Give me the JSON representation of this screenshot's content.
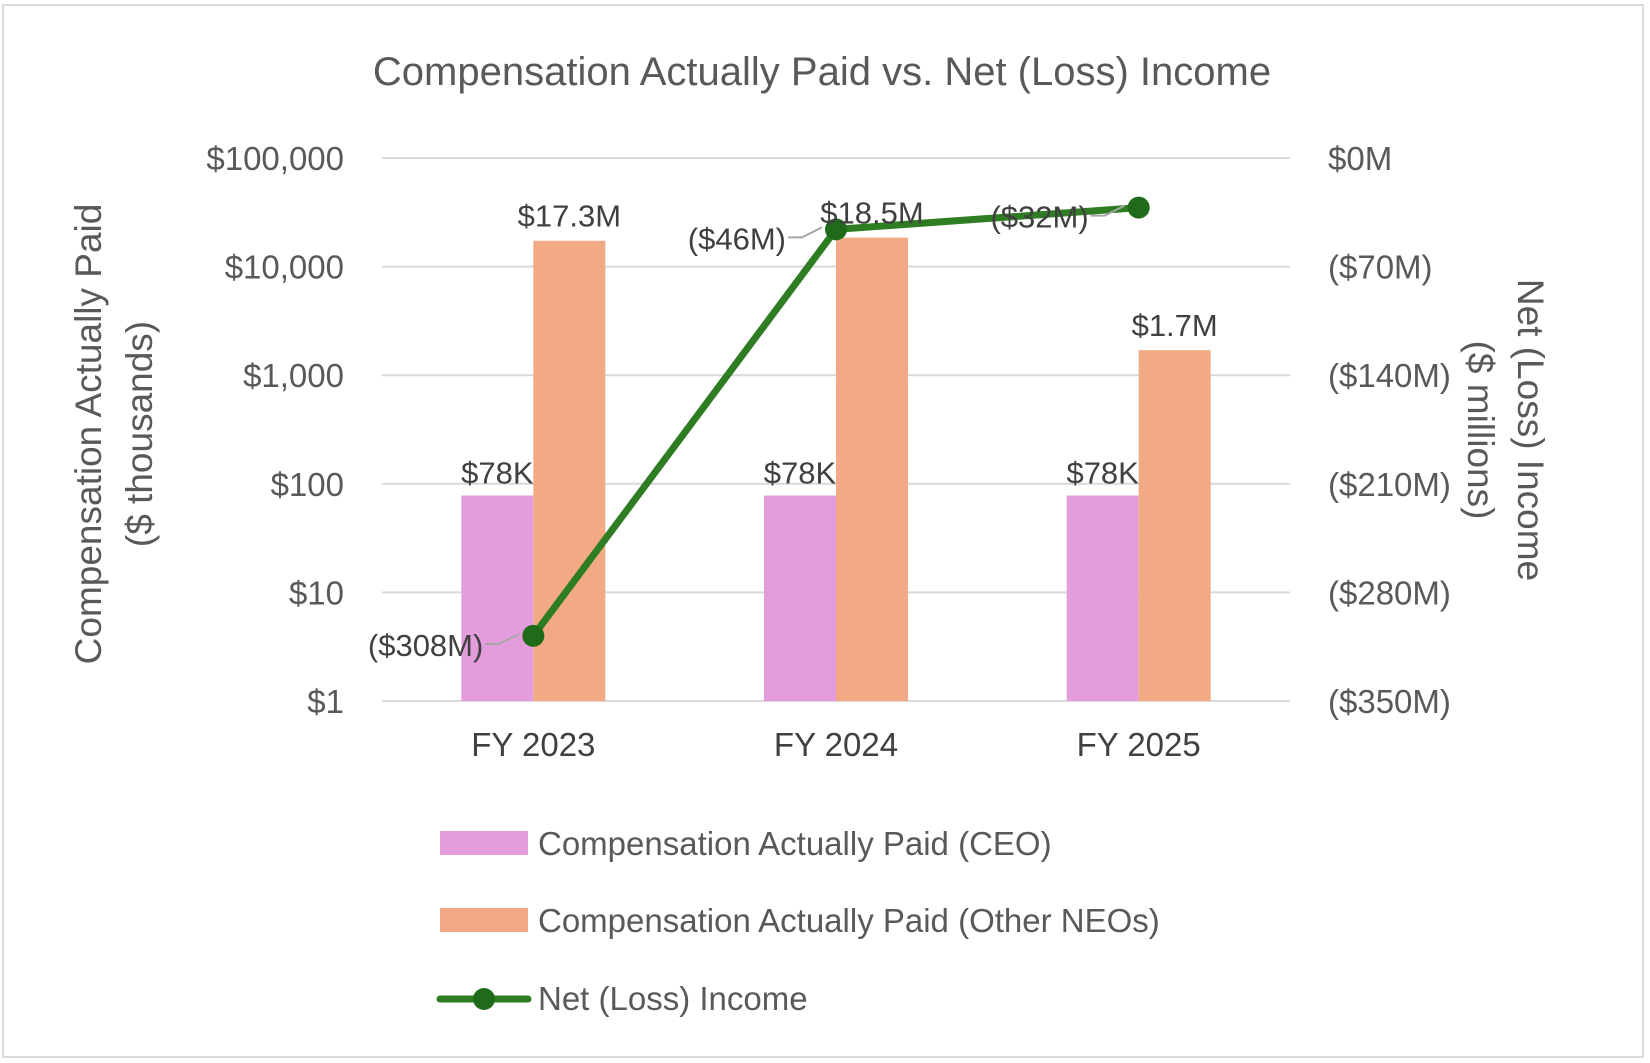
{
  "chart_data": {
    "type": "bar",
    "title": "Compensation Actually Paid vs. Net (Loss) Income",
    "categories": [
      "FY 2023",
      "FY 2024",
      "FY 2025"
    ],
    "y_left": {
      "label_line1": "Compensation Actually Paid",
      "label_line2": "($ thousands)",
      "scale": "log",
      "ylim": [
        1,
        100000
      ],
      "ticks": [
        1,
        10,
        100,
        1000,
        10000,
        100000
      ],
      "tick_labels": [
        "$1",
        "$10",
        "$100",
        "$1,000",
        "$10,000",
        "$100,000"
      ]
    },
    "y_right": {
      "label_line1": "Net (Loss) Income",
      "label_line2": "($ millions)",
      "scale": "linear",
      "ylim": [
        -350,
        0
      ],
      "ticks": [
        0,
        -70,
        -140,
        -210,
        -280,
        -350
      ],
      "tick_labels": [
        "$0M",
        "($70M)",
        "($140M)",
        "($210M)",
        "($280M)",
        "($350M)"
      ]
    },
    "series": [
      {
        "name": "Compensation Actually Paid (CEO)",
        "type": "bar",
        "axis": "left",
        "color": "#e39ddd",
        "values": [
          78,
          78,
          78
        ],
        "labels": [
          "$78K",
          "$78K",
          "$78K"
        ]
      },
      {
        "name": "Compensation Actually Paid (Other NEOs)",
        "type": "bar",
        "axis": "left",
        "color": "#f2aa84",
        "values": [
          17300,
          18500,
          1700
        ],
        "labels": [
          "$17.3M",
          "$18.5M",
          "$1.7M"
        ]
      },
      {
        "name": "Net (Loss) Income",
        "type": "line",
        "axis": "right",
        "color": "#2e7d22",
        "marker_color": "#1f6b1a",
        "values": [
          -308,
          -46,
          -32
        ],
        "labels": [
          "($308M)",
          "($46M)",
          "($32M)"
        ]
      }
    ],
    "grid": true,
    "legend_position": "bottom"
  }
}
